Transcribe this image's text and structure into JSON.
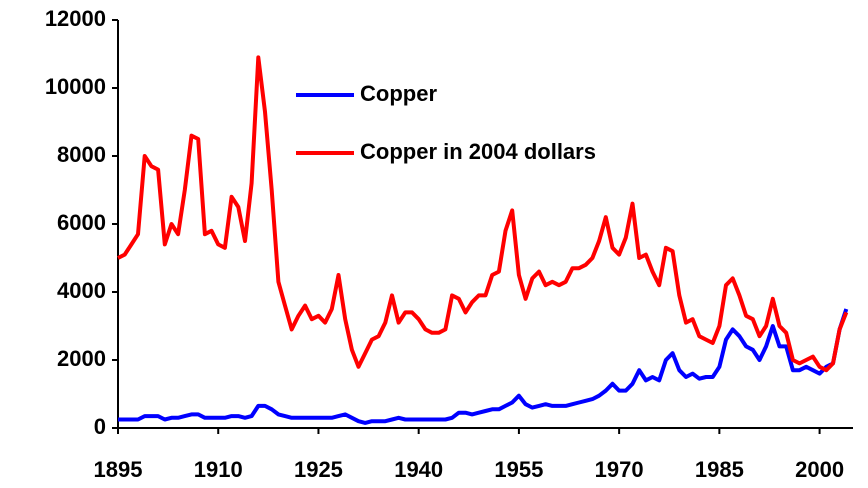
{
  "chart_data": {
    "type": "line",
    "x": [
      1895,
      1896,
      1897,
      1898,
      1899,
      1900,
      1901,
      1902,
      1903,
      1904,
      1905,
      1906,
      1907,
      1908,
      1909,
      1910,
      1911,
      1912,
      1913,
      1914,
      1915,
      1916,
      1917,
      1918,
      1919,
      1920,
      1921,
      1922,
      1923,
      1924,
      1925,
      1926,
      1927,
      1928,
      1929,
      1930,
      1931,
      1932,
      1933,
      1934,
      1935,
      1936,
      1937,
      1938,
      1939,
      1940,
      1941,
      1942,
      1943,
      1944,
      1945,
      1946,
      1947,
      1948,
      1949,
      1950,
      1951,
      1952,
      1953,
      1954,
      1955,
      1956,
      1957,
      1958,
      1959,
      1960,
      1961,
      1962,
      1963,
      1964,
      1965,
      1966,
      1967,
      1968,
      1969,
      1970,
      1971,
      1972,
      1973,
      1974,
      1975,
      1976,
      1977,
      1978,
      1979,
      1980,
      1981,
      1982,
      1983,
      1984,
      1985,
      1986,
      1987,
      1988,
      1989,
      1990,
      1991,
      1992,
      1993,
      1994,
      1995,
      1996,
      1997,
      1998,
      1999,
      2000,
      2001,
      2002,
      2003,
      2004
    ],
    "series": [
      {
        "name": "Copper",
        "color": "#0000ff",
        "values": [
          250,
          250,
          250,
          250,
          350,
          350,
          350,
          250,
          300,
          300,
          350,
          400,
          400,
          300,
          300,
          300,
          300,
          350,
          350,
          300,
          350,
          650,
          650,
          550,
          400,
          350,
          300,
          300,
          300,
          300,
          300,
          300,
          300,
          350,
          400,
          300,
          200,
          150,
          200,
          200,
          200,
          250,
          300,
          250,
          250,
          250,
          250,
          250,
          250,
          250,
          300,
          450,
          450,
          400,
          450,
          500,
          550,
          550,
          650,
          750,
          950,
          700,
          600,
          650,
          700,
          650,
          650,
          650,
          700,
          750,
          800,
          850,
          950,
          1100,
          1300,
          1100,
          1100,
          1300,
          1700,
          1400,
          1500,
          1400,
          2000,
          2200,
          1700,
          1500,
          1600,
          1450,
          1500,
          1500,
          1800,
          2600,
          2900,
          2700,
          2400,
          2300,
          2000,
          2400,
          3000,
          2400,
          2400,
          1700,
          1700,
          1800,
          1700,
          1600,
          1800,
          1900,
          2900,
          3500
        ]
      },
      {
        "name": "Copper in 2004 dollars",
        "color": "#ff0000",
        "values": [
          5000,
          5100,
          5400,
          5700,
          8000,
          7700,
          7600,
          5400,
          6000,
          5700,
          7000,
          8600,
          8500,
          5700,
          5800,
          5400,
          5300,
          6800,
          6500,
          5500,
          7200,
          10900,
          9300,
          7000,
          4300,
          3600,
          2900,
          3300,
          3600,
          3200,
          3300,
          3100,
          3500,
          4500,
          3200,
          2300,
          1800,
          2200,
          2600,
          2700,
          3100,
          3900,
          3100,
          3400,
          3400,
          3200,
          2900,
          2800,
          2800,
          2900,
          3900,
          3800,
          3400,
          3700,
          3900,
          3900,
          4500,
          4600,
          5800,
          6400,
          4500,
          3800,
          4400,
          4600,
          4200,
          4300,
          4200,
          4300,
          4700,
          4700,
          4800,
          5000,
          5500,
          6200,
          5300,
          5100,
          5600,
          6600,
          5000,
          5100,
          4600,
          4200,
          5300,
          5200,
          3900,
          3100,
          3200,
          2700,
          2600,
          2500,
          3000,
          4200,
          4400,
          3900,
          3300,
          3200,
          2700,
          3000,
          3800,
          3000,
          2800,
          2000,
          1900,
          2000,
          2100,
          1800,
          1700,
          1900,
          2900,
          3400
        ]
      }
    ],
    "xlim": [
      1895,
      2005
    ],
    "xticks": [
      1895,
      1910,
      1925,
      1940,
      1955,
      1970,
      1985,
      2000
    ],
    "ylim": [
      0,
      12000
    ],
    "yticks": [
      0,
      2000,
      4000,
      6000,
      8000,
      10000,
      12000
    ],
    "grid": false,
    "legend": "top"
  }
}
